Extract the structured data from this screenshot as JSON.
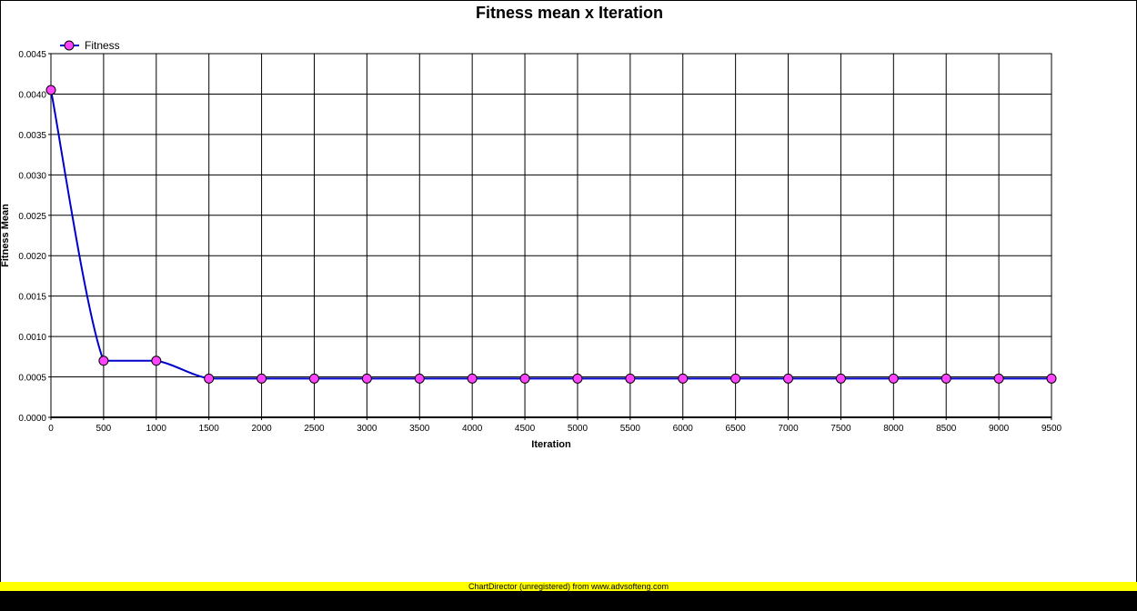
{
  "chart_data": {
    "type": "line",
    "title": "Fitness mean x Iteration",
    "xlabel": "Iteration",
    "ylabel": "Fitness Mean",
    "x": [
      0,
      500,
      1000,
      1500,
      2000,
      2500,
      3000,
      3500,
      4000,
      4500,
      5000,
      5500,
      6000,
      6500,
      7000,
      7500,
      8000,
      8500,
      9000,
      9500
    ],
    "x_tick_labels": [
      "0",
      "500",
      "1000",
      "1500",
      "2000",
      "2500",
      "3000",
      "3500",
      "4000",
      "4500",
      "5000",
      "5500",
      "6000",
      "6500",
      "7000",
      "7500",
      "8000",
      "8500",
      "9000",
      "9500"
    ],
    "y_tick_labels": [
      "0.0000",
      "0.0005",
      "0.0010",
      "0.0015",
      "0.0020",
      "0.0025",
      "0.0030",
      "0.0035",
      "0.0040",
      "0.0045"
    ],
    "y_ticks": [
      0,
      0.0005,
      0.001,
      0.0015,
      0.002,
      0.0025,
      0.003,
      0.0035,
      0.004,
      0.0045
    ],
    "xlim": [
      0,
      9500
    ],
    "ylim": [
      0,
      0.0045
    ],
    "grid": true,
    "legend_position": "top-left",
    "series": [
      {
        "name": "Fitness",
        "line_color": "#0000cc",
        "marker_color": "#ff44ff",
        "values": [
          0.00405,
          0.0007,
          0.0007,
          0.00048,
          0.00048,
          0.00048,
          0.00048,
          0.00048,
          0.00048,
          0.00048,
          0.00048,
          0.00048,
          0.00048,
          0.00048,
          0.00048,
          0.00048,
          0.00048,
          0.00048,
          0.00048,
          0.00048
        ]
      }
    ]
  },
  "footer": {
    "text": "ChartDirector (unregistered) from www.advsofteng.com",
    "color": "#ffff00"
  }
}
